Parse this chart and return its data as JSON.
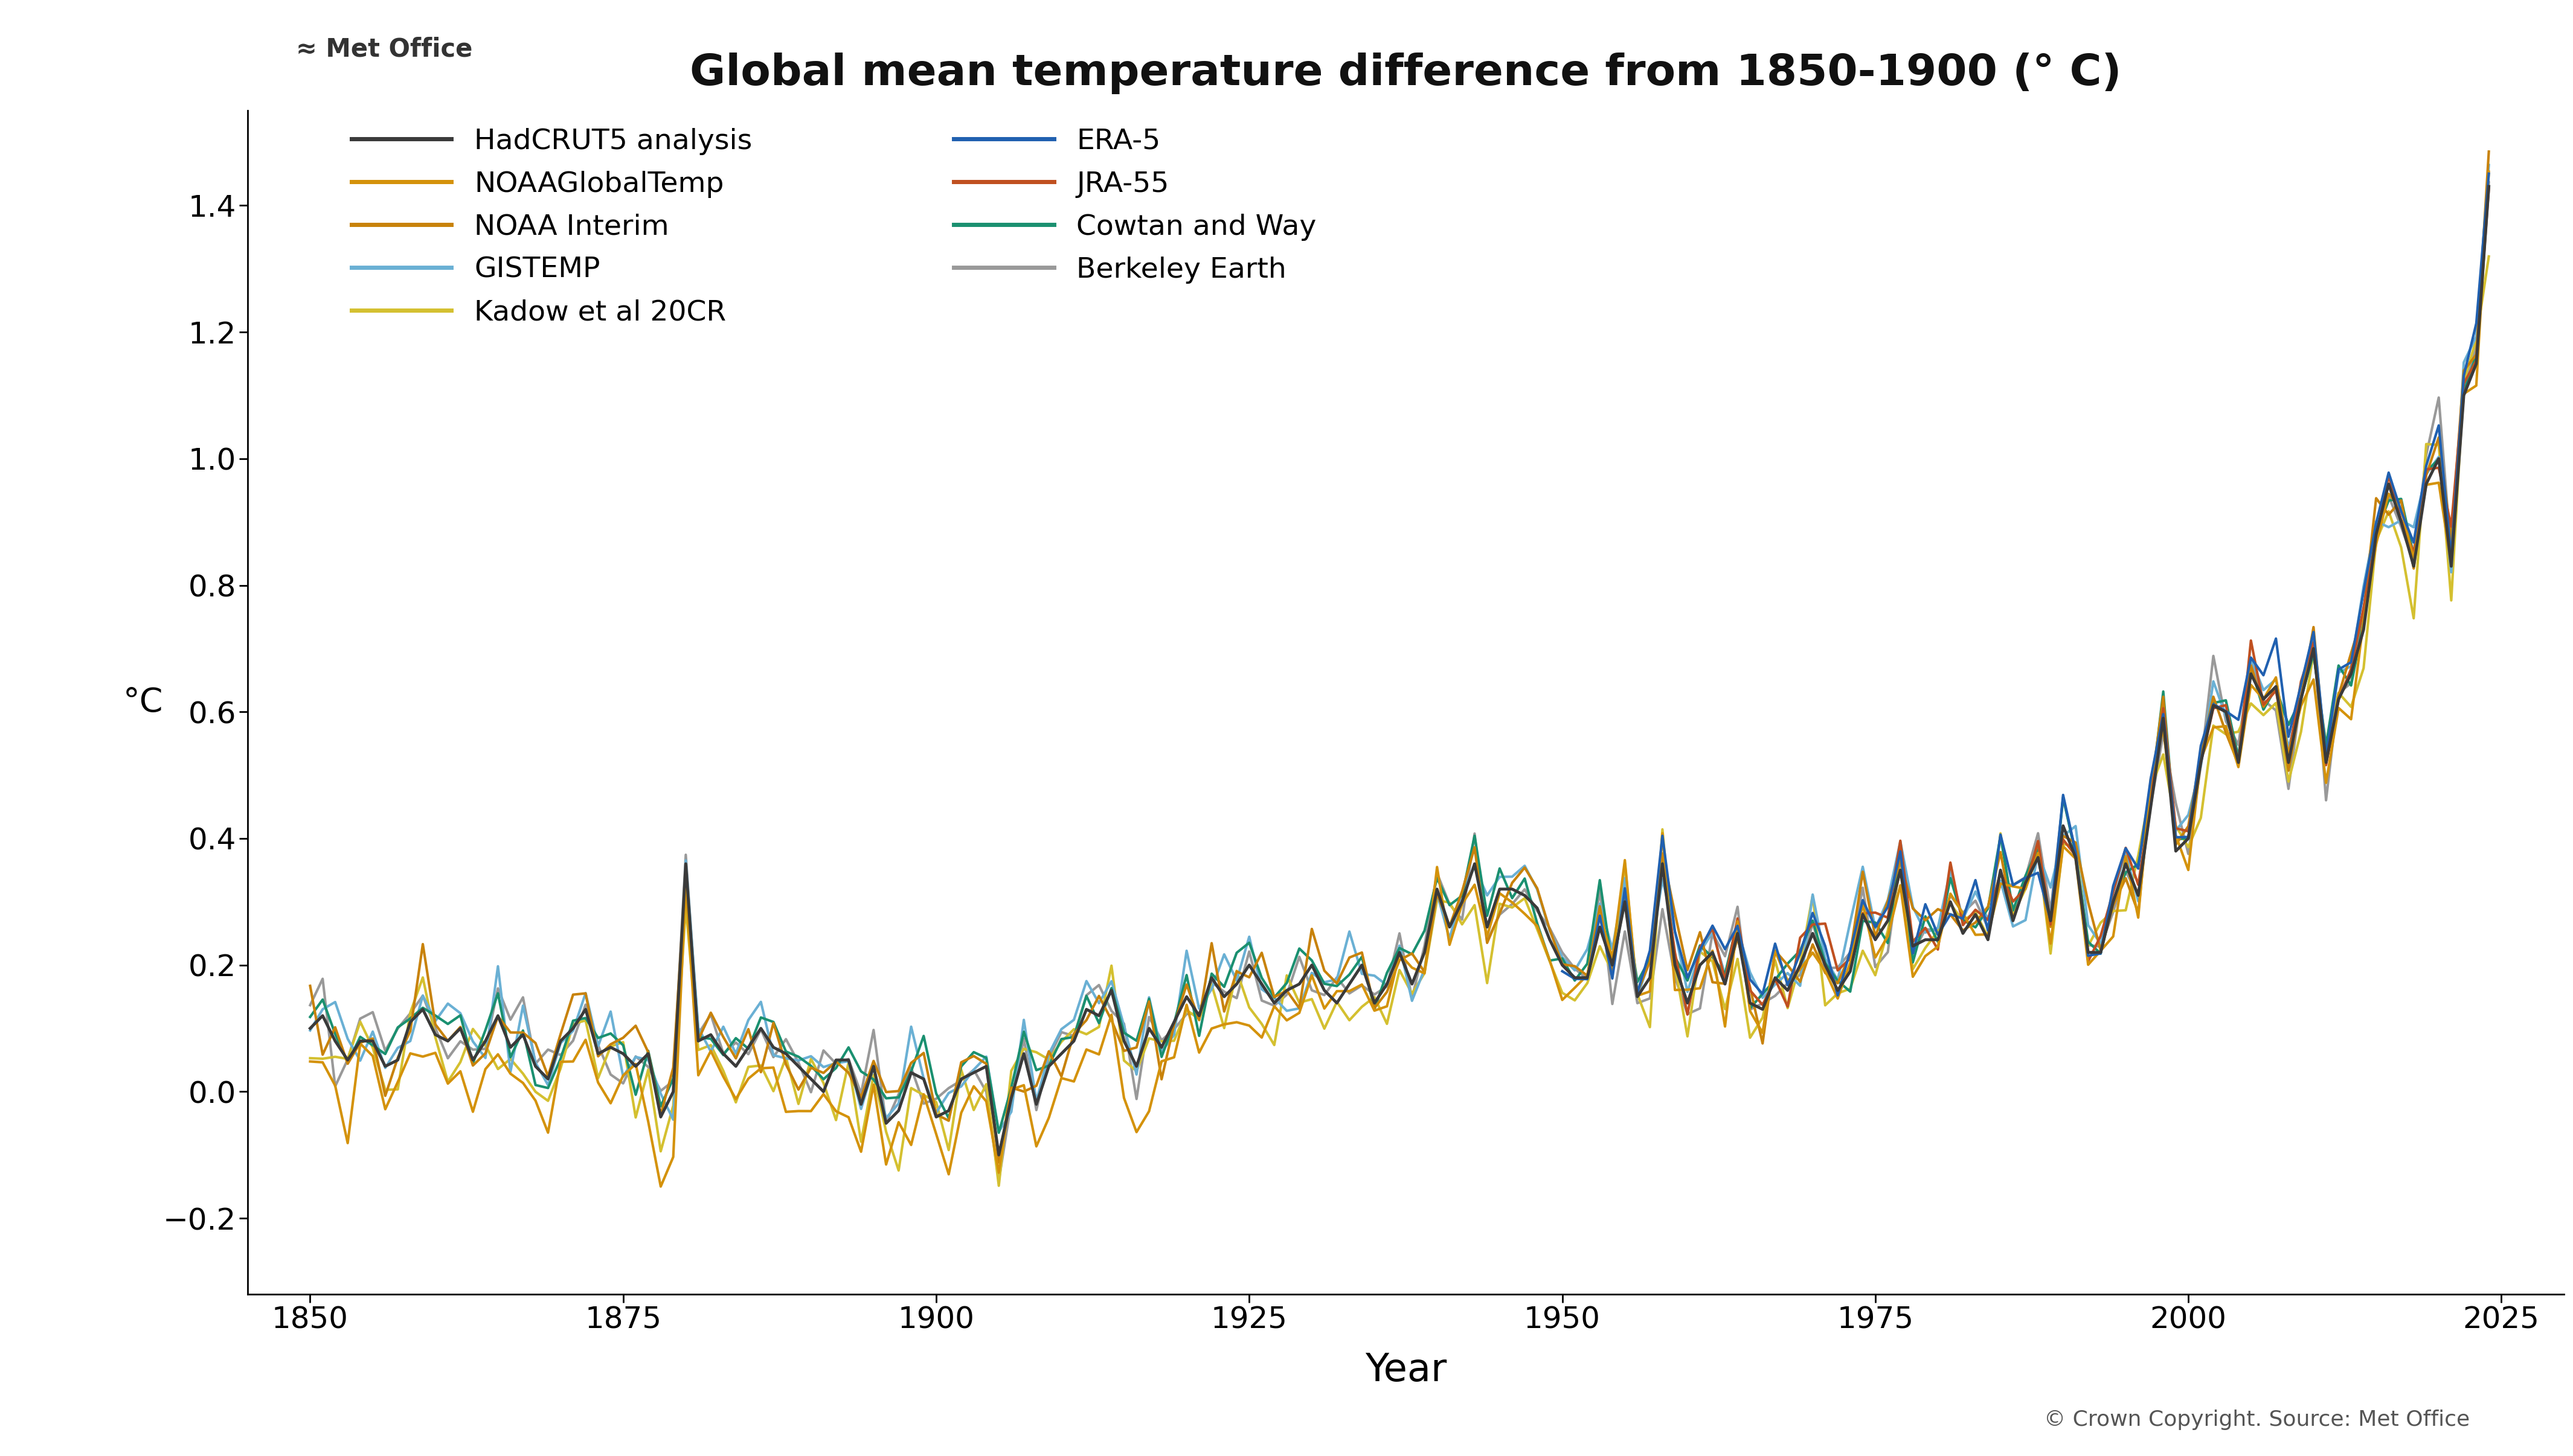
{
  "title": "Global mean temperature difference from 1850-1900 (° C)",
  "ylabel": "°C",
  "xlabel": "Year",
  "copyright": "© Crown Copyright. Source: Met Office",
  "metoffice_text": "≈ Met Office",
  "ylim": [
    -0.32,
    1.55
  ],
  "xlim": [
    1845,
    2030
  ],
  "yticks": [
    -0.2,
    0.0,
    0.2,
    0.4,
    0.6,
    0.8,
    1.0,
    1.2,
    1.4
  ],
  "xticks": [
    1850,
    1875,
    1900,
    1925,
    1950,
    1975,
    2000,
    2025
  ],
  "series": {
    "HadCRUT5 analysis": {
      "color": "#3a3a3a",
      "lw": 3.5,
      "zorder": 10
    },
    "NOAAGlobalTemp": {
      "color": "#d4920a",
      "lw": 3.0,
      "zorder": 8
    },
    "NOAA Interim": {
      "color": "#c8820a",
      "lw": 3.0,
      "zorder": 7
    },
    "GISTEMP": {
      "color": "#6ab0d4",
      "lw": 3.0,
      "zorder": 6
    },
    "Kadow et al 20CR": {
      "color": "#d4c030",
      "lw": 3.0,
      "zorder": 5
    },
    "ERA-5": {
      "color": "#2060b0",
      "lw": 3.0,
      "zorder": 9
    },
    "JRA-55": {
      "color": "#c05020",
      "lw": 3.0,
      "zorder": 7
    },
    "Cowtan and Way": {
      "color": "#1a9070",
      "lw": 3.0,
      "zorder": 6
    },
    "Berkeley Earth": {
      "color": "#999999",
      "lw": 3.0,
      "zorder": 4
    }
  },
  "background_color": "#ffffff",
  "title_fontsize": 52,
  "tick_fontsize": 36,
  "label_fontsize": 40,
  "legend_fontsize": 34,
  "copyright_fontsize": 26
}
